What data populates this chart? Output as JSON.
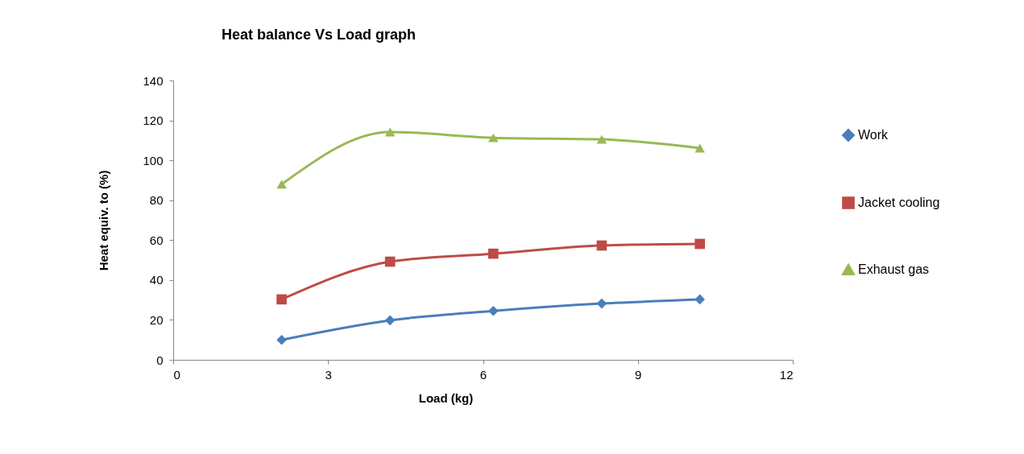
{
  "chart_data": {
    "type": "line",
    "title": "Heat balance Vs Load graph",
    "xlabel": "Load (kg)",
    "ylabel": "Heat equiv. to (%)",
    "xlim": [
      0,
      12
    ],
    "xticks": [
      0,
      3,
      6,
      9,
      12
    ],
    "ylim": [
      0,
      140
    ],
    "yticks": [
      0,
      20,
      40,
      60,
      80,
      100,
      120,
      140
    ],
    "grid": false,
    "legend": "right",
    "series": [
      {
        "name": "Work",
        "color": "#4a7ebb",
        "marker": "diamond",
        "x": [
          2.1,
          4.2,
          6.2,
          8.3,
          10.2
        ],
        "values": [
          10,
          19.8,
          24.5,
          28.2,
          30.3
        ]
      },
      {
        "name": "Jacket cooling",
        "color": "#be4b48",
        "marker": "square",
        "x": [
          2.1,
          4.2,
          6.2,
          8.3,
          10.2
        ],
        "values": [
          30.3,
          49.2,
          53.2,
          57.3,
          58.1
        ]
      },
      {
        "name": "Exhaust gas",
        "color": "#98b954",
        "marker": "triangle",
        "x": [
          2.1,
          4.2,
          6.2,
          8.3,
          10.2
        ],
        "values": [
          88,
          114.2,
          111.3,
          110.5,
          106.1
        ]
      }
    ]
  }
}
